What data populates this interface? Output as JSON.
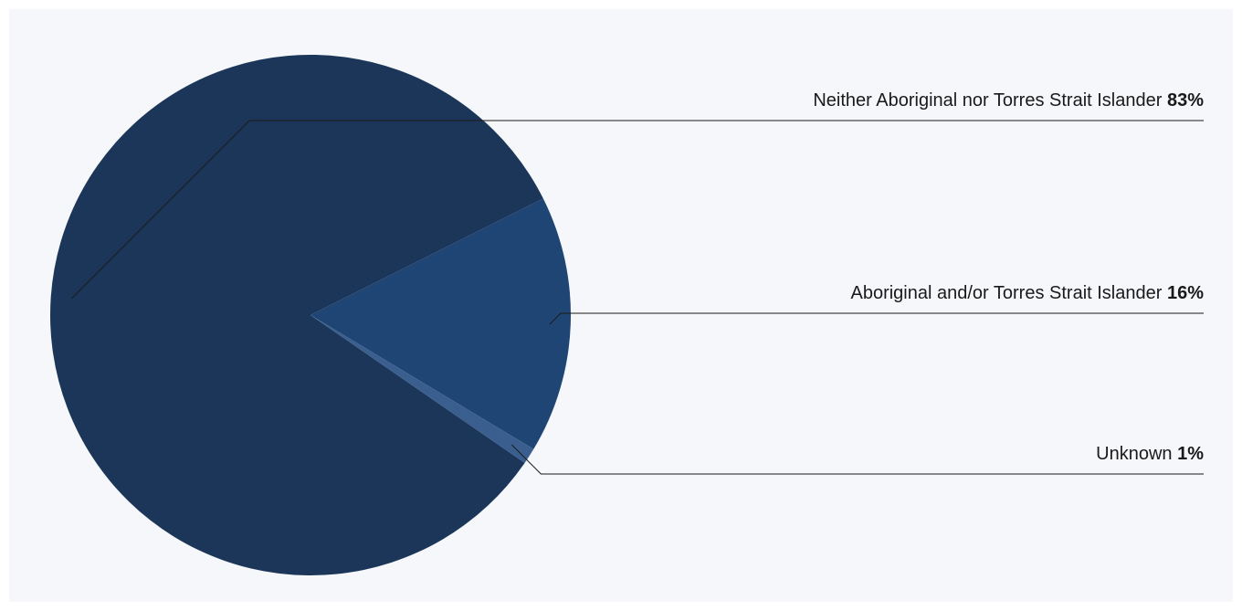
{
  "chart_data": {
    "type": "pie",
    "categories": [
      "Neither Aboriginal nor Torres Strait Islander",
      "Aboriginal and/or Torres Strait Islander",
      "Unknown"
    ],
    "values": [
      83,
      16,
      1
    ],
    "value_labels": [
      "83%",
      "16%",
      "1%"
    ],
    "colors": [
      "#1c3659",
      "#1e4573",
      "#3a5f8f"
    ]
  }
}
